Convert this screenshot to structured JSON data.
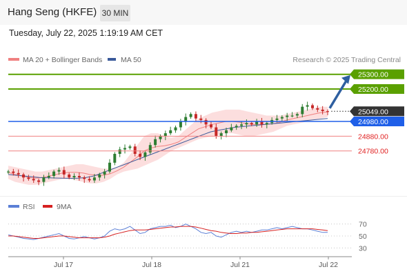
{
  "header": {
    "title": "Hang Seng (HKFE)",
    "timeframe": "30 MIN"
  },
  "datetime": "Tuesday, July 22, 2025 1:19:19 AM CET",
  "legend": {
    "ma20": "MA 20 + Bollinger Bands",
    "ma50": "MA 50",
    "credit": "Research © 2025 Trading Central"
  },
  "rsi_legend": {
    "rsi": "RSI",
    "ma9": "9MA"
  },
  "colors": {
    "up": "#2e7d32",
    "down": "#c62828",
    "target_green": "#5aa000",
    "pivot_blue": "#1f5fe8",
    "support_red": "#e02020",
    "bollinger_fill": "#fbd3d3",
    "ma20": "#f08080",
    "ma50": "#3a5a9a",
    "rsi": "#5b7fd6",
    "rsi_ma": "#d62020",
    "arrow": "#2e5fa0"
  },
  "chart_data": [
    {
      "type": "candlestick",
      "title": "",
      "x_ticks": [
        "Jul 17",
        "Jul 18",
        "Jul 21",
        "Jul 22"
      ],
      "ylim": [
        24540,
        25350
      ],
      "levels": [
        {
          "value": 25300,
          "label": "25300.00",
          "kind": "target"
        },
        {
          "value": 25200,
          "label": "25200.00",
          "kind": "target"
        },
        {
          "value": 25049,
          "label": "25049.00",
          "kind": "last"
        },
        {
          "value": 24980,
          "label": "24980.00",
          "kind": "pivot"
        },
        {
          "value": 24880,
          "label": "24880.00",
          "kind": "support"
        },
        {
          "value": 24780,
          "label": "24780.00",
          "kind": "support"
        }
      ],
      "close_path": [
        24640,
        24630,
        24620,
        24600,
        24590,
        24580,
        24570,
        24600,
        24610,
        24640,
        24650,
        24620,
        24600,
        24610,
        24600,
        24590,
        24580,
        24600,
        24620,
        24640,
        24700,
        24760,
        24790,
        24800,
        24810,
        24760,
        24740,
        24770,
        24820,
        24860,
        24880,
        24900,
        24920,
        24940,
        24980,
        25010,
        25030,
        25000,
        24990,
        24960,
        24940,
        24880,
        24900,
        24920,
        24940,
        24950,
        24960,
        24970,
        24960,
        24980,
        24960,
        24970,
        24990,
        25000,
        25010,
        25020,
        25020,
        25030,
        25080,
        25090,
        25070,
        25060,
        25050,
        25049
      ],
      "bollinger_upper": [
        24680,
        24670,
        24660,
        24650,
        24640,
        24640,
        24650,
        24660,
        24670,
        24680,
        24690,
        24690,
        24680,
        24670,
        24660,
        24660,
        24670,
        24700,
        24760,
        24820,
        24880,
        24900,
        24900,
        24880,
        24870,
        24880,
        24920,
        24960,
        25000,
        25020,
        25040,
        25050,
        25060,
        25060,
        25060,
        25050,
        25040,
        25030,
        25020,
        25020,
        25020,
        25030,
        25040,
        25050,
        25060,
        25070,
        25080,
        25080
      ],
      "bollinger_lower": [
        24590,
        24570,
        24560,
        24550,
        24550,
        24560,
        24570,
        24580,
        24590,
        24590,
        24580,
        24570,
        24560,
        24560,
        24570,
        24590,
        24620,
        24640,
        24650,
        24660,
        24680,
        24700,
        24720,
        24750,
        24780,
        24800,
        24820,
        24840,
        24860,
        24870,
        24880,
        24890,
        24900,
        24900,
        24890,
        24880,
        24880,
        24890,
        24900,
        24910,
        24930,
        24950,
        24960,
        24970,
        24980,
        24990,
        25000,
        25010
      ],
      "ma50": [
        24620,
        24615,
        24610,
        24605,
        24600,
        24598,
        24596,
        24595,
        24594,
        24595,
        24600,
        24610,
        24630,
        24650,
        24670,
        24690,
        24710,
        24730,
        24750,
        24770,
        24790,
        24810,
        24830,
        24850,
        24870,
        24890,
        24910,
        24920,
        24930,
        24940,
        24945,
        24950,
        24955,
        24960,
        24965,
        24970,
        24975,
        24980,
        24985,
        24990,
        24995,
        25000
      ]
    },
    {
      "type": "line",
      "title": "",
      "y_ticks": [
        70,
        50,
        30
      ],
      "ylim": [
        20,
        80
      ],
      "series": [
        {
          "name": "RSI",
          "values": [
            52,
            50,
            48,
            46,
            45,
            44,
            46,
            48,
            50,
            52,
            54,
            50,
            46,
            45,
            47,
            49,
            47,
            45,
            47,
            50,
            58,
            62,
            60,
            62,
            66,
            60,
            54,
            56,
            62,
            64,
            66,
            66,
            68,
            64,
            66,
            70,
            66,
            62,
            56,
            54,
            56,
            50,
            48,
            52,
            56,
            58,
            56,
            58,
            56,
            58,
            60,
            60,
            62,
            64,
            62,
            64,
            66,
            64,
            62,
            62,
            60,
            58,
            56,
            56
          ]
        },
        {
          "name": "9MA",
          "values": [
            50,
            50,
            49,
            48,
            47,
            46,
            46,
            47,
            48,
            49,
            50,
            50,
            49,
            48,
            47,
            47,
            47,
            47,
            47,
            48,
            50,
            53,
            55,
            57,
            59,
            60,
            60,
            60,
            61,
            62,
            63,
            64,
            65,
            65,
            66,
            66,
            66,
            65,
            63,
            61,
            59,
            58,
            56,
            55,
            54,
            54,
            55,
            55,
            56,
            56,
            57,
            58,
            59,
            60,
            61,
            62,
            62,
            62,
            62,
            62,
            62,
            61,
            60,
            59
          ]
        }
      ]
    }
  ]
}
